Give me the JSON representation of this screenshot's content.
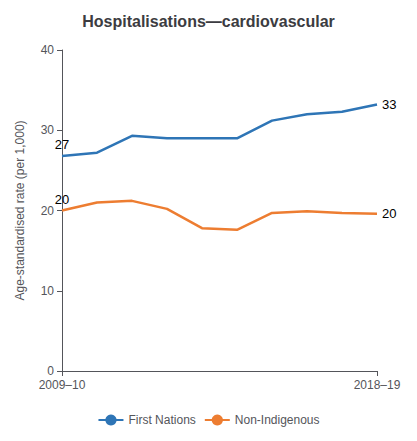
{
  "chart_data": {
    "type": "line",
    "title": "Hospitalisations—cardiovascular",
    "ylabel": "Age-standardised rate (per 1,000)",
    "categories": [
      "2009–10",
      null,
      null,
      null,
      null,
      null,
      null,
      null,
      null,
      "2018–19"
    ],
    "series": [
      {
        "name": "First Nations",
        "color": "#2E75B6",
        "values": [
          26.8,
          27.2,
          29.3,
          29.0,
          29.0,
          29.0,
          31.2,
          32.0,
          32.3,
          33.2
        ]
      },
      {
        "name": "Non-Indigenous",
        "color": "#ED7D31",
        "values": [
          20.0,
          21.0,
          21.2,
          20.2,
          17.8,
          17.6,
          19.7,
          19.9,
          19.7,
          19.6
        ]
      }
    ],
    "annotations": [
      {
        "text": "27",
        "series": "First Nations",
        "point": 0
      },
      {
        "text": "20",
        "series": "Non-Indigenous",
        "point": 0
      },
      {
        "text": "33",
        "series": "First Nations",
        "point": 9
      },
      {
        "text": "20",
        "series": "Non-Indigenous",
        "point": 9
      }
    ],
    "ylim": [
      0,
      40
    ],
    "yticks": [
      0,
      10,
      20,
      30,
      40
    ],
    "grid": false,
    "legend": "bottom"
  }
}
